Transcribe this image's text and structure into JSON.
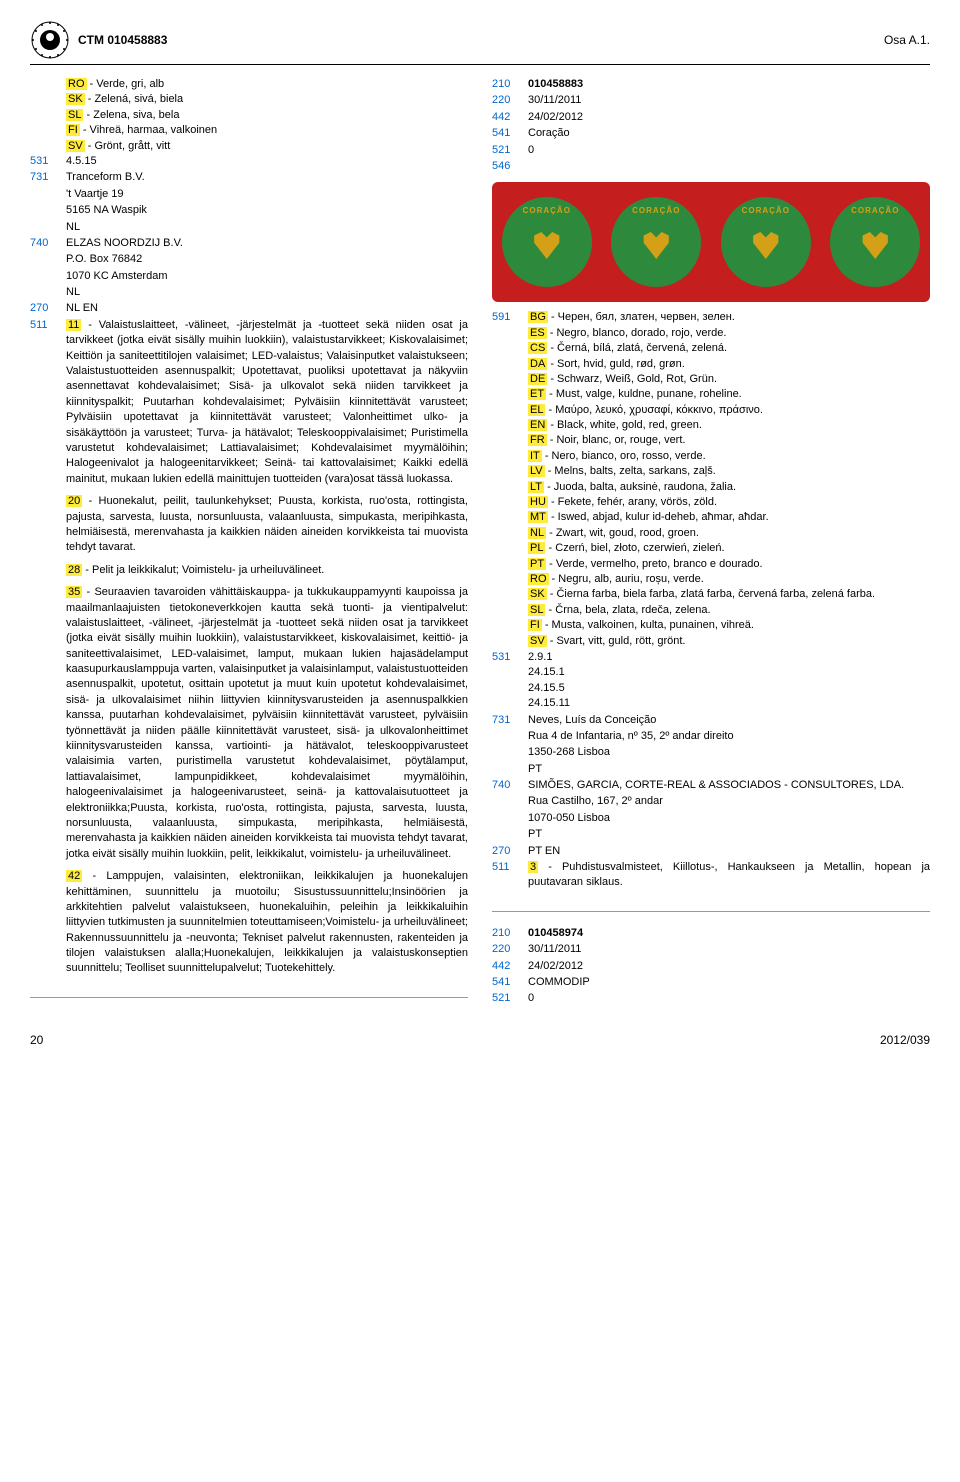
{
  "header": {
    "ctm": "CTM 010458883",
    "osa": "Osa A.1."
  },
  "left": {
    "langs1": [
      {
        "c": "RO",
        "t": " - Verde, gri, alb"
      },
      {
        "c": "SK",
        "t": " - Zelená, sivá, biela"
      },
      {
        "c": "SL",
        "t": " - Zelena, siva, bela"
      },
      {
        "c": "FI",
        "t": " - Vihreä, harmaa, valkoinen"
      },
      {
        "c": "SV",
        "t": " - Grönt, grått, vitt"
      }
    ],
    "r531": "4.5.15",
    "r731_a": "Tranceform B.V.",
    "r731_b": "'t Vaartje 19",
    "r731_c": "5165 NA Waspik",
    "r731_d": "NL",
    "r740_a": "ELZAS NOORDZIJ B.V.",
    "r740_b": "P.O. Box 76842",
    "r740_c": "1070 KC Amsterdam",
    "r740_d": "NL",
    "r270": "NL EN",
    "p511_11": " - Valaistuslaitteet, -välineet, -järjestelmät ja -tuotteet sekä niiden osat ja tarvikkeet (jotka eivät sisälly muihin luokkiin), valaistustarvikkeet; Kiskovalaisimet; Keittiön ja saniteettitilojen valaisimet; LED-valaistus; Valaisinputket valaistukseen; Valaistustuotteiden asennuspalkit; Upotettavat, puoliksi upotettavat ja näkyviin asennettavat kohdevalaisimet; Sisä- ja ulkovalot sekä niiden tarvikkeet ja kiinnityspalkit; Puutarhan kohdevalaisimet; Pylväisiin kiinnitettävät varusteet; Pylväisiin upotettavat ja kiinnitettävät varusteet; Valonheittimet ulko- ja sisäkäyttöön ja varusteet; Turva- ja hätävalot; Teleskooppivalaisimet; Puristimella varustetut kohdevalaisimet; Lattiavalaisimet; Kohdevalaisimet myymälöihin; Halogeenivalot ja halogeenitarvikkeet; Seinä- tai kattovalaisimet; Kaikki edellä mainitut, mukaan lukien edellä mainittujen tuotteiden (vara)osat tässä luokassa.",
    "p511_20": " - Huonekalut, peilit, taulunkehykset; Puusta, korkista, ruo'osta, rottingista, pajusta, sarvesta, luusta, norsunluusta, valaanluusta, simpukasta, meripihkasta, helmiäisestä, merenvahasta ja kaikkien näiden aineiden korvikkeista tai muovista tehdyt tavarat.",
    "p511_28": " - Pelit ja leikkikalut; Voimistelu- ja urheiluvälineet.",
    "p511_35": " - Seuraavien tavaroiden vähittäiskauppa- ja tukkukauppamyynti kaupoissa ja maailmanlaajuisten tietokoneverkkojen kautta sekä tuonti- ja vientipalvelut: valaistuslaitteet, -välineet, -järjestelmät ja -tuotteet sekä niiden osat ja tarvikkeet (jotka eivät sisälly muihin luokkiin), valaistustarvikkeet, kiskovalaisimet, keittiö- ja saniteettivalaisimet, LED-valaisimet, lamput, mukaan lukien hajasädelamput kaasupurkauslamppuja varten, valaisinputket ja valaisinlamput, valaistustuotteiden asennuspalkit, upotetut, osittain upotetut ja muut kuin upotetut kohdevalaisimet, sisä- ja ulkovalaisimet niihin liittyvien kiinnitysvarusteiden ja asennuspalkkien kanssa, puutarhan kohdevalaisimet, pylväisiin kiinnitettävät varusteet, pylväisiin työnnettävät ja niiden päälle kiinnitettävät varusteet, sisä- ja ulkovalonheittimet kiinnitysvarusteiden kanssa, vartiointi- ja hätävalot, teleskooppivarusteet valaisimia varten, puristimella varustetut kohdevalaisimet, pöytälamput, lattiavalaisimet, lampunpidikkeet, kohdevalaisimet myymälöihin, halogeenivalaisimet ja halogeenivarusteet, seinä- ja kattovalaisutuotteet ja elektroniikka;Puusta, korkista, ruo'osta, rottingista, pajusta, sarvesta, luusta, norsunluusta, valaanluusta, simpukasta, meripihkasta, helmiäisestä, merenvahasta ja kaikkien näiden aineiden korvikkeista tai muovista tehdyt tavarat, jotka eivät sisälly muihin luokkiin, pelit, leikkikalut, voimistelu- ja urheiluvälineet.",
    "p511_42": " - Lamppujen, valaisinten, elektroniikan, leikkikalujen ja huonekalujen kehittäminen, suunnittelu ja muotoilu; Sisustussuunnittelu;Insinöörien ja arkkitehtien palvelut valaistukseen, huonekaluihin, peleihin ja leikkikaluihin liittyvien tutkimusten ja suunnitelmien toteuttamiseen;Voimistelu- ja urheiluvälineet; Rakennussuunnittelu ja -neuvonta; Tekniset palvelut rakennusten, rakenteiden ja tilojen valaistuksen alalla;Huonekalujen, leikkikalujen ja valaistuskonseptien suunnittelu; Teolliset suunnittelupalvelut; Tuotekehittely."
  },
  "right": {
    "r210": "010458883",
    "r220": "30/11/2011",
    "r442": "24/02/2012",
    "r541": "Coração",
    "r521": "0",
    "langs2": [
      {
        "c": "BG",
        "t": " - Черен, бял, златен, червен, зелен."
      },
      {
        "c": "ES",
        "t": " - Negro, blanco, dorado, rojo, verde."
      },
      {
        "c": "CS",
        "t": " - Černá, bílá, zlatá, červená, zelená."
      },
      {
        "c": "DA",
        "t": " - Sort, hvid, guld, rød, grøn."
      },
      {
        "c": "DE",
        "t": " - Schwarz, Weiß, Gold, Rot, Grün."
      },
      {
        "c": "ET",
        "t": " - Must, valge, kuldne, punane, roheline."
      },
      {
        "c": "EL",
        "t": " - Μαύρο, λευκό, χρυσαφί, κόκκινο, πράσινο."
      },
      {
        "c": "EN",
        "t": " - Black, white, gold, red, green."
      },
      {
        "c": "FR",
        "t": " - Noir, blanc, or, rouge, vert."
      },
      {
        "c": "IT",
        "t": " - Nero, bianco, oro, rosso, verde."
      },
      {
        "c": "LV",
        "t": " - Melns, balts, zelta, sarkans, zaļš."
      },
      {
        "c": "LT",
        "t": " - Juoda, balta, auksinė, raudona, žalia."
      },
      {
        "c": "HU",
        "t": " - Fekete, fehér, arany, vörös, zöld."
      },
      {
        "c": "MT",
        "t": " - Iswed, abjad, kulur id-deheb, aħmar, aħdar."
      },
      {
        "c": "NL",
        "t": " - Zwart, wit, goud, rood, groen."
      },
      {
        "c": "PL",
        "t": " - Czerń, biel, złoto, czerwień, zieleń."
      },
      {
        "c": "PT",
        "t": " - Verde, vermelho, preto, branco e dourado."
      },
      {
        "c": "RO",
        "t": " - Negru, alb, auriu, roșu, verde."
      },
      {
        "c": "SK",
        "t": " - Čierna farba, biela farba, zlatá farba, červená farba, zelená farba."
      },
      {
        "c": "SL",
        "t": " - Črna, bela, zlata, rdeča, zelena."
      },
      {
        "c": "FI",
        "t": " - Musta, valkoinen, kulta, punainen, vihreä."
      },
      {
        "c": "SV",
        "t": " - Svart, vitt, guld, rött, grönt."
      }
    ],
    "r531b": [
      "2.9.1",
      "24.15.1",
      "24.15.5",
      "24.15.11"
    ],
    "r731b_a": "Neves, Luís da Conceição",
    "r731b_b": "Rua 4 de Infantaria, nº 35, 2º andar direito",
    "r731b_c": "1350-268 Lisboa",
    "r731b_d": "PT",
    "r740b_a": "SIMÕES, GARCIA, CORTE-REAL & ASSOCIADOS - CONSULTORES, LDA.",
    "r740b_b": "Rua Castilho, 167, 2º andar",
    "r740b_c": "1070-050 Lisboa",
    "r740b_d": "PT",
    "r270b": "PT EN",
    "p511b_3": " - Puhdistusvalmisteet, Kiillotus-, Hankaukseen ja Metallin, hopean ja puutavaran siklaus.",
    "sec2_210": "010458974",
    "sec2_220": "30/11/2011",
    "sec2_442": "24/02/2012",
    "sec2_541": "COMMODIP",
    "sec2_521": "0"
  },
  "footer": {
    "page": "20",
    "issue": "2012/039"
  }
}
